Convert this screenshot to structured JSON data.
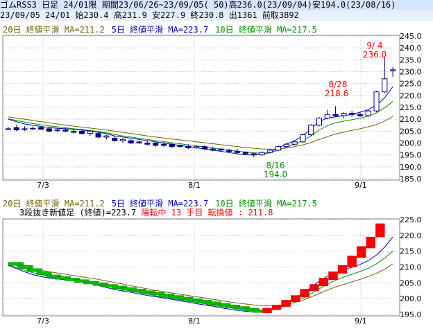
{
  "header": {
    "line1": "ゴムRSS3 日足 24/01限 期間23/06/26~23/09/05( 50)高236.0(23/09/04)安194.0(23/08/16)",
    "line2": "23/09/05 24/01 始230.4 高231.9 安227.9 終230.8 出1361 前取3892"
  },
  "ma_legend": {
    "ma20": "20日 終値平滑 MA=211.2",
    "ma5": "5日 終値平滑 MA=223.7",
    "ma10": "10日 終値平滑 MA=217.5"
  },
  "lower_info": {
    "label": "3段抜き新値足 (終値)=223.7",
    "state": "陽転中",
    "count": "13 手目",
    "turn": "転換値 : 211.8"
  },
  "annotations": {
    "high_date": "9/ 4",
    "high_value": "236.0",
    "mid_date": "8/28",
    "mid_value": "218.6",
    "low_date": "8/16",
    "low_value": "194.0"
  },
  "x_labels": [
    "7/3",
    "8/1",
    "9/1"
  ],
  "chart_data": [
    {
      "type": "candlestick",
      "title": "日足",
      "ylim": [
        185,
        245
      ],
      "yticks": [
        "185.0",
        "190.0",
        "195.0",
        "200.0",
        "205.0",
        "210.0",
        "215.0",
        "220.0",
        "225.0",
        "230.0",
        "235.0",
        "240.0",
        "245.0"
      ],
      "series": [
        {
          "name": "5日 終値平滑",
          "values": [
            210,
            209,
            208,
            207.5,
            207,
            206.5,
            206.2,
            206,
            205.8,
            205.5,
            205,
            204.5,
            204,
            203,
            202.5,
            202,
            201.5,
            201,
            200.5,
            200,
            199.5,
            199,
            198.5,
            198,
            197.5,
            197,
            196.5,
            196,
            195.5,
            195,
            195,
            195.2,
            196,
            198,
            199.5,
            201,
            203,
            206,
            209,
            210.5,
            211,
            211.5,
            212,
            213,
            214,
            216,
            219,
            223.7
          ]
        },
        {
          "name": "10日 終値平滑",
          "values": [
            210.2,
            209.5,
            208.8,
            208.2,
            207.7,
            207.2,
            206.8,
            206.4,
            206,
            205.7,
            205.3,
            204.8,
            204.3,
            203.6,
            203,
            202.5,
            202,
            201.5,
            201,
            200.6,
            200.1,
            199.7,
            199.2,
            198.8,
            198.3,
            197.9,
            197.4,
            197,
            196.6,
            196.2,
            195.9,
            195.7,
            196,
            197,
            198.3,
            199.6,
            201,
            203,
            205.5,
            207.3,
            208.5,
            209.2,
            209.8,
            210.5,
            211.3,
            212.7,
            214.8,
            217.5
          ]
        },
        {
          "name": "20日 終値平滑",
          "values": [
            211,
            210.5,
            210,
            209.5,
            209,
            208.5,
            208,
            207.5,
            207.1,
            206.7,
            206.3,
            205.9,
            205.5,
            205,
            204.5,
            204,
            203.5,
            203,
            202.5,
            202.1,
            201.7,
            201.3,
            200.9,
            200.5,
            200.1,
            199.7,
            199.3,
            198.9,
            198.5,
            198.1,
            197.8,
            197.5,
            197.4,
            197.5,
            197.9,
            198.5,
            199.2,
            200.2,
            201.5,
            202.7,
            203.8,
            204.6,
            205.3,
            206,
            206.8,
            207.8,
            209.2,
            211.2
          ]
        }
      ],
      "candles": [
        {
          "o": 206,
          "h": 207,
          "l": 205.5,
          "c": 206
        },
        {
          "o": 206.5,
          "h": 207.5,
          "l": 205,
          "c": 205.5
        },
        {
          "o": 206,
          "h": 207,
          "l": 205,
          "c": 206
        },
        {
          "o": 206,
          "h": 207,
          "l": 205.5,
          "c": 206.2
        },
        {
          "o": 206.5,
          "h": 207,
          "l": 205.5,
          "c": 205.8
        },
        {
          "o": 206,
          "h": 207,
          "l": 204.5,
          "c": 205
        },
        {
          "o": 205.5,
          "h": 206.5,
          "l": 204.5,
          "c": 205.5
        },
        {
          "o": 205.5,
          "h": 206.5,
          "l": 204.5,
          "c": 205
        },
        {
          "o": 205,
          "h": 206,
          "l": 204,
          "c": 204.5
        },
        {
          "o": 205,
          "h": 205.5,
          "l": 203.5,
          "c": 204
        },
        {
          "o": 204,
          "h": 205.5,
          "l": 203,
          "c": 205
        },
        {
          "o": 204,
          "h": 204.5,
          "l": 202,
          "c": 202.5
        },
        {
          "o": 202.5,
          "h": 203.5,
          "l": 201.5,
          "c": 203
        },
        {
          "o": 202,
          "h": 203,
          "l": 200.5,
          "c": 201
        },
        {
          "o": 201,
          "h": 202,
          "l": 200,
          "c": 201.5
        },
        {
          "o": 201,
          "h": 201.5,
          "l": 199.5,
          "c": 200
        },
        {
          "o": 200.5,
          "h": 201,
          "l": 199.5,
          "c": 200
        },
        {
          "o": 200,
          "h": 201,
          "l": 199,
          "c": 199.5
        },
        {
          "o": 200,
          "h": 200.5,
          "l": 198.5,
          "c": 199
        },
        {
          "o": 199.5,
          "h": 200.5,
          "l": 198.5,
          "c": 199
        },
        {
          "o": 199.5,
          "h": 200,
          "l": 198,
          "c": 198.5
        },
        {
          "o": 199,
          "h": 199.5,
          "l": 198,
          "c": 198.5
        },
        {
          "o": 198.5,
          "h": 199.5,
          "l": 197.5,
          "c": 198
        },
        {
          "o": 198,
          "h": 199,
          "l": 197.5,
          "c": 198.5
        },
        {
          "o": 198.5,
          "h": 199,
          "l": 197,
          "c": 197.5
        },
        {
          "o": 197.5,
          "h": 198.5,
          "l": 196.5,
          "c": 197
        },
        {
          "o": 197.5,
          "h": 198,
          "l": 196.5,
          "c": 197
        },
        {
          "o": 197,
          "h": 197.5,
          "l": 196,
          "c": 196.5
        },
        {
          "o": 196.5,
          "h": 197.5,
          "l": 195.5,
          "c": 196
        },
        {
          "o": 196,
          "h": 196.5,
          "l": 195,
          "c": 195.5
        },
        {
          "o": 195.5,
          "h": 196,
          "l": 194,
          "c": 195
        },
        {
          "o": 195,
          "h": 196.5,
          "l": 194.5,
          "c": 196
        },
        {
          "o": 196,
          "h": 197.5,
          "l": 195.5,
          "c": 197
        },
        {
          "o": 197,
          "h": 199,
          "l": 196.5,
          "c": 198.5
        },
        {
          "o": 198.5,
          "h": 200,
          "l": 198,
          "c": 199.5
        },
        {
          "o": 199.5,
          "h": 201,
          "l": 199,
          "c": 200.5
        },
        {
          "o": 200.5,
          "h": 204,
          "l": 200,
          "c": 203.5
        },
        {
          "o": 203.5,
          "h": 208,
          "l": 203,
          "c": 207.5
        },
        {
          "o": 207.5,
          "h": 211,
          "l": 207,
          "c": 210.5
        },
        {
          "o": 210.5,
          "h": 214,
          "l": 210,
          "c": 212
        },
        {
          "o": 212,
          "h": 215.5,
          "l": 211,
          "c": 211.5
        },
        {
          "o": 211.5,
          "h": 213,
          "l": 210.5,
          "c": 212.5
        },
        {
          "o": 212.5,
          "h": 213.5,
          "l": 211,
          "c": 212
        },
        {
          "o": 212,
          "h": 213,
          "l": 211,
          "c": 211.5
        },
        {
          "o": 211.5,
          "h": 214,
          "l": 211,
          "c": 213.5
        },
        {
          "o": 213.5,
          "h": 222,
          "l": 213,
          "c": 221.5
        },
        {
          "o": 221.5,
          "h": 236,
          "l": 221,
          "c": 227
        },
        {
          "o": 230.4,
          "h": 231.9,
          "l": 227.9,
          "c": 230.8
        }
      ]
    },
    {
      "type": "new-price-bars",
      "title": "3段抜き新値足 (終値)",
      "ylim": [
        195,
        225
      ],
      "yticks": [
        "195.0",
        "200.0",
        "205.0",
        "210.0",
        "215.0",
        "220.0",
        "225.0"
      ],
      "series": [
        {
          "name": "5日 終値平滑",
          "values": [
            210.5,
            209.5,
            208.5,
            207.6,
            207,
            206.5,
            206.2,
            206,
            205.7,
            205.3,
            204.8,
            204.2,
            203.5,
            202.9,
            202.4,
            202,
            201.5,
            201,
            200.6,
            200.2,
            199.8,
            199.3,
            198.9,
            198.4,
            198,
            197.6,
            197.1,
            196.7,
            196.3,
            196,
            195.8,
            195.8,
            196.3,
            197.3,
            198.6,
            200,
            201.6,
            203.5,
            205.5,
            207.1,
            208.1,
            209,
            209.9,
            210.8,
            212,
            213.8,
            216.3,
            219.5
          ]
        },
        {
          "name": "10日 終値平滑",
          "values": [
            210.8,
            209.8,
            209,
            208.2,
            207.6,
            207.1,
            206.7,
            206.3,
            205.9,
            205.5,
            205.1,
            204.6,
            204,
            203.4,
            202.9,
            202.4,
            201.9,
            201.4,
            200.9,
            200.5,
            200.1,
            199.6,
            199.2,
            198.8,
            198.4,
            197.9,
            197.5,
            197.1,
            196.8,
            196.5,
            196.3,
            196.2,
            196.4,
            197,
            197.9,
            198.9,
            200.1,
            201.5,
            203.1,
            204.6,
            205.8,
            206.8,
            207.7,
            208.6,
            209.6,
            211,
            212.8,
            215
          ]
        },
        {
          "name": "20日 終値平滑",
          "values": [
            211,
            210.5,
            210,
            209.5,
            209,
            208.5,
            208.1,
            207.7,
            207.3,
            206.9,
            206.5,
            206.1,
            205.6,
            205.1,
            204.6,
            204.1,
            203.6,
            203.1,
            202.6,
            202.2,
            201.8,
            201.4,
            201,
            200.6,
            200.2,
            199.8,
            199.4,
            199,
            198.6,
            198.3,
            198,
            197.8,
            197.7,
            197.8,
            198.2,
            198.8,
            199.5,
            200.5,
            201.6,
            202.7,
            203.7,
            204.5,
            205.3,
            206.1,
            207,
            208,
            209.3,
            211
          ]
        }
      ],
      "bars_down": [
        {
          "o": 211.5,
          "c": 210.5
        },
        {
          "o": 210.5,
          "c": 209.5
        },
        {
          "o": 209.5,
          "c": 208.5
        },
        {
          "o": 208.5,
          "c": 207.5
        },
        {
          "o": 207.5,
          "c": 207
        },
        {
          "o": 207,
          "c": 206.5
        },
        {
          "o": 206.5,
          "c": 206
        },
        {
          "o": 206,
          "c": 205.5
        },
        {
          "o": 205.5,
          "c": 205
        },
        {
          "o": 205,
          "c": 204.5
        },
        {
          "o": 204.5,
          "c": 204
        },
        {
          "o": 204,
          "c": 203.5
        },
        {
          "o": 203.5,
          "c": 203
        },
        {
          "o": 203,
          "c": 202.5
        },
        {
          "o": 202.5,
          "c": 202
        },
        {
          "o": 202,
          "c": 201.5
        },
        {
          "o": 201.5,
          "c": 201
        },
        {
          "o": 201,
          "c": 200.5
        },
        {
          "o": 200.5,
          "c": 200
        },
        {
          "o": 200,
          "c": 199.5
        },
        {
          "o": 199.5,
          "c": 199
        },
        {
          "o": 199,
          "c": 198.5
        },
        {
          "o": 198.5,
          "c": 198
        },
        {
          "o": 198,
          "c": 197.5
        },
        {
          "o": 197.5,
          "c": 197
        },
        {
          "o": 197,
          "c": 196.5
        },
        {
          "o": 196.5,
          "c": 196
        }
      ],
      "bars_up": [
        {
          "o": 195.5,
          "c": 197
        },
        {
          "o": 196.5,
          "c": 198
        },
        {
          "o": 197.5,
          "c": 199.5
        },
        {
          "o": 199,
          "c": 201
        },
        {
          "o": 200.5,
          "c": 203
        },
        {
          "o": 202.5,
          "c": 204.5
        },
        {
          "o": 204,
          "c": 206.5
        },
        {
          "o": 206,
          "c": 208.5
        },
        {
          "o": 208,
          "c": 210.5
        },
        {
          "o": 210,
          "c": 213.5
        },
        {
          "o": 213,
          "c": 216.5
        },
        {
          "o": 216,
          "c": 219.5
        },
        {
          "o": 219.5,
          "c": 223.7
        }
      ]
    }
  ],
  "colors": {
    "header_bg": "#d6e4ff",
    "plot_border": "#808080",
    "grid": "#c0c0c0",
    "candle_bull": "#ffffff",
    "candle_bear": "#000080",
    "ma5": "#0000c0",
    "ma10": "#009000",
    "ma20": "#706000",
    "bar_up": "#ff0000",
    "bar_down": "#00c000",
    "annotation_high": "#ff0000",
    "annotation_low": "#009000"
  }
}
